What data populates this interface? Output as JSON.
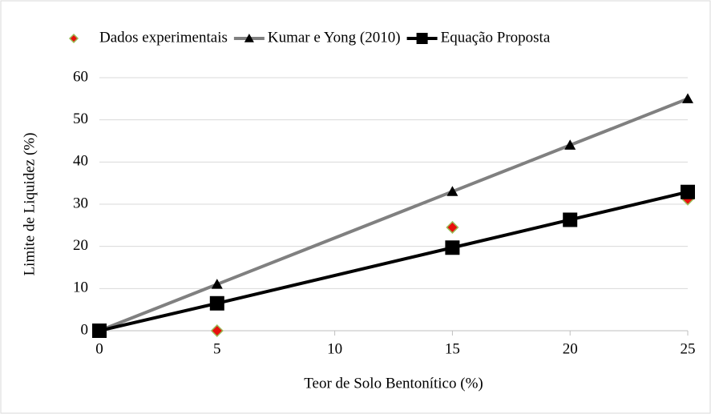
{
  "chart_data": {
    "type": "line",
    "xlabel": "Teor de Solo Bentonítico (%)",
    "ylabel": "Limite de Liquidez (%)",
    "x": [
      0,
      5,
      15,
      20,
      25
    ],
    "series": [
      {
        "name": "Dados experimentais",
        "color": "#e8100c",
        "marker": "diamond",
        "line": false,
        "values": [
          0,
          0,
          24.5,
          26.5,
          31.2
        ]
      },
      {
        "name": "Kumar e Yong (2010)",
        "color": "#808080",
        "marker": "triangle",
        "line": true,
        "values": [
          0,
          11,
          33,
          44,
          55
        ]
      },
      {
        "name": "Equação Proposta",
        "color": "#000000",
        "marker": "square",
        "line": true,
        "values": [
          0,
          6.5,
          19.7,
          26.3,
          32.9
        ]
      }
    ],
    "xlim": [
      0,
      25
    ],
    "xticks": [
      0,
      5,
      10,
      15,
      20,
      25
    ],
    "ylim": [
      0,
      60
    ],
    "yticks": [
      0,
      10,
      20,
      30,
      40,
      50,
      60
    ],
    "grid": true,
    "legend": "top"
  }
}
